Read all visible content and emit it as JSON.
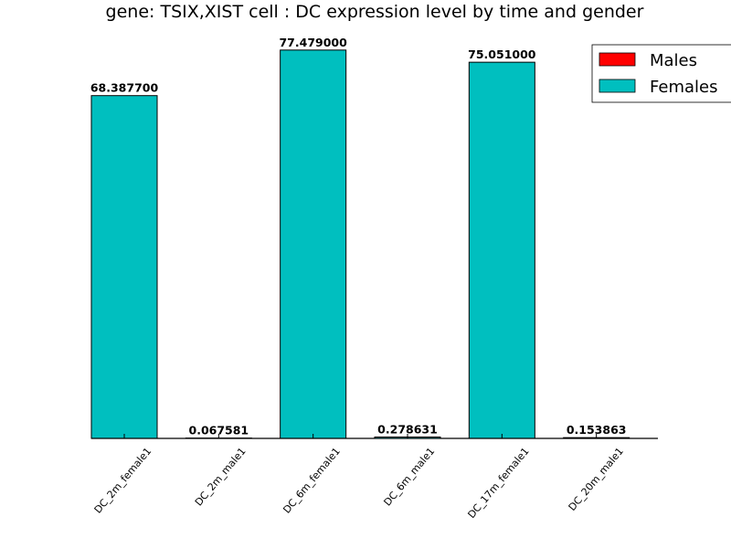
{
  "chart_data": {
    "type": "bar",
    "title": "gene: TSIX,XIST cell : DC expression level by time and gender",
    "xlabel": "",
    "ylabel": "",
    "ylim": [
      0,
      82
    ],
    "grid": false,
    "legend_position": "top-right",
    "categories": [
      "DC_2m_female1",
      "DC_2m_male1",
      "DC_6m_female1",
      "DC_6m_male1",
      "DC_17m_female1",
      "DC_20m_male1"
    ],
    "series": [
      {
        "name": "Males",
        "color": "#ff0000"
      },
      {
        "name": "Females",
        "color": "#00bfbf"
      }
    ],
    "bars": [
      {
        "category": "DC_2m_female1",
        "series": "Females",
        "value": 68.3877,
        "label": "68.387700"
      },
      {
        "category": "DC_2m_male1",
        "series": "Females",
        "value": 0.067581,
        "label": "0.067581"
      },
      {
        "category": "DC_6m_female1",
        "series": "Females",
        "value": 77.479,
        "label": "77.479000"
      },
      {
        "category": "DC_6m_male1",
        "series": "Females",
        "value": 0.278631,
        "label": "0.278631"
      },
      {
        "category": "DC_17m_female1",
        "series": "Females",
        "value": 75.051,
        "label": "75.051000"
      },
      {
        "category": "DC_20m_male1",
        "series": "Females",
        "value": 0.153863,
        "label": "0.153863"
      }
    ]
  }
}
